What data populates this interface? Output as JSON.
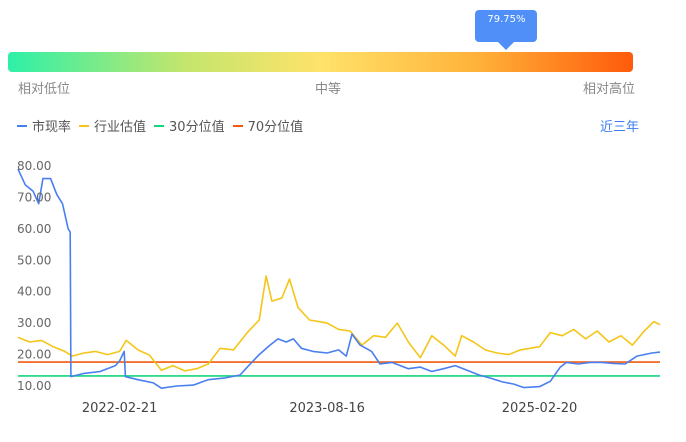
{
  "percentile_label": "79.75%",
  "percentile_value": 0.7975,
  "gradient": {
    "low_label": "相对低位",
    "mid_label": "中等",
    "high_label": "相对高位"
  },
  "legend": [
    {
      "label": "市现率",
      "color": "#4a7ff0"
    },
    {
      "label": "行业估值",
      "color": "#f5c518"
    },
    {
      "label": "30分位值",
      "color": "#13d67c"
    },
    {
      "label": "70分位值",
      "color": "#f2590f"
    }
  ],
  "range_link": "近三年",
  "chart_data": {
    "type": "line",
    "x_start": "2021-06-01",
    "x_end": "2025-12-31",
    "x_ticks": [
      "2022-02-21",
      "2023-08-16",
      "2025-02-20"
    ],
    "y_ticks": [
      "80.00",
      "70.00",
      "60.00",
      "50.00",
      "40.00",
      "30.00",
      "20.00",
      "10.00"
    ],
    "ylim": [
      10,
      80
    ],
    "grid": false,
    "series": [
      {
        "name": "市现率",
        "color": "#4a7ff0",
        "points": [
          [
            "2021-06-01",
            79
          ],
          [
            "2021-06-20",
            74
          ],
          [
            "2021-07-10",
            72
          ],
          [
            "2021-07-25",
            68
          ],
          [
            "2021-08-05",
            76
          ],
          [
            "2021-08-25",
            76
          ],
          [
            "2021-09-10",
            71
          ],
          [
            "2021-09-25",
            68
          ],
          [
            "2021-10-10",
            60
          ],
          [
            "2021-10-15",
            59
          ],
          [
            "2021-10-17",
            13
          ],
          [
            "2021-11-20",
            14
          ],
          [
            "2022-01-01",
            14.6
          ],
          [
            "2022-02-10",
            16.5
          ],
          [
            "2022-02-21",
            18
          ],
          [
            "2022-03-05",
            21
          ],
          [
            "2022-03-08",
            13
          ],
          [
            "2022-04-10",
            12
          ],
          [
            "2022-05-20",
            11
          ],
          [
            "2022-06-10",
            9.3
          ],
          [
            "2022-07-20",
            10
          ],
          [
            "2022-09-01",
            10.3
          ],
          [
            "2022-10-10",
            12
          ],
          [
            "2022-11-20",
            12.5
          ],
          [
            "2023-01-01",
            13.5
          ],
          [
            "2023-01-20",
            16
          ],
          [
            "2023-02-20",
            20
          ],
          [
            "2023-03-20",
            23
          ],
          [
            "2023-04-10",
            25
          ],
          [
            "2023-05-01",
            24
          ],
          [
            "2023-05-20",
            25
          ],
          [
            "2023-06-10",
            22
          ],
          [
            "2023-07-10",
            21
          ],
          [
            "2023-08-16",
            20.5
          ],
          [
            "2023-09-15",
            21.5
          ],
          [
            "2023-10-05",
            19.5
          ],
          [
            "2023-10-20",
            26.5
          ],
          [
            "2023-11-10",
            23
          ],
          [
            "2023-12-10",
            21
          ],
          [
            "2024-01-01",
            17
          ],
          [
            "2024-02-01",
            17.5
          ],
          [
            "2024-03-15",
            15.5
          ],
          [
            "2024-04-15",
            16
          ],
          [
            "2024-05-15",
            14.6
          ],
          [
            "2024-06-15",
            15.5
          ],
          [
            "2024-07-15",
            16.5
          ],
          [
            "2024-08-15",
            15
          ],
          [
            "2024-09-15",
            13.5
          ],
          [
            "2024-10-15",
            12.5
          ],
          [
            "2024-11-15",
            11.3
          ],
          [
            "2024-12-15",
            10.6
          ],
          [
            "2025-01-10",
            9.5
          ],
          [
            "2025-02-20",
            9.8
          ],
          [
            "2025-03-20",
            11.5
          ],
          [
            "2025-04-15",
            16
          ],
          [
            "2025-05-01",
            17.5
          ],
          [
            "2025-06-01",
            17
          ],
          [
            "2025-07-01",
            17.5
          ],
          [
            "2025-08-01",
            17.5
          ],
          [
            "2025-09-01",
            17.2
          ],
          [
            "2025-10-01",
            17
          ],
          [
            "2025-11-01",
            19.5
          ],
          [
            "2025-12-10",
            20.5
          ],
          [
            "2025-12-31",
            20.8
          ]
        ]
      },
      {
        "name": "行业估值",
        "color": "#f5c518",
        "points": [
          [
            "2021-06-01",
            25.5
          ],
          [
            "2021-07-01",
            24
          ],
          [
            "2021-08-01",
            24.5
          ],
          [
            "2021-09-01",
            22.5
          ],
          [
            "2021-10-01",
            21
          ],
          [
            "2021-10-20",
            19.5
          ],
          [
            "2021-11-20",
            20.5
          ],
          [
            "2021-12-20",
            21
          ],
          [
            "2022-01-20",
            20
          ],
          [
            "2022-02-21",
            21
          ],
          [
            "2022-03-10",
            24.5
          ],
          [
            "2022-04-10",
            21.5
          ],
          [
            "2022-05-10",
            19.8
          ],
          [
            "2022-06-10",
            15
          ],
          [
            "2022-07-10",
            16.5
          ],
          [
            "2022-08-10",
            14.8
          ],
          [
            "2022-09-10",
            15.5
          ],
          [
            "2022-10-10",
            17
          ],
          [
            "2022-11-10",
            22
          ],
          [
            "2022-12-15",
            21.5
          ],
          [
            "2023-01-20",
            27
          ],
          [
            "2023-02-20",
            31
          ],
          [
            "2023-03-10",
            45
          ],
          [
            "2023-03-25",
            37
          ],
          [
            "2023-04-20",
            38
          ],
          [
            "2023-05-10",
            44
          ],
          [
            "2023-06-01",
            35
          ],
          [
            "2023-07-01",
            31
          ],
          [
            "2023-08-16",
            30
          ],
          [
            "2023-09-15",
            28
          ],
          [
            "2023-10-15",
            27.5
          ],
          [
            "2023-11-15",
            23
          ],
          [
            "2023-12-15",
            26
          ],
          [
            "2024-01-15",
            25.5
          ],
          [
            "2024-02-15",
            30
          ],
          [
            "2024-03-15",
            24
          ],
          [
            "2024-04-15",
            19
          ],
          [
            "2024-05-15",
            26
          ],
          [
            "2024-06-15",
            23
          ],
          [
            "2024-07-15",
            19.5
          ],
          [
            "2024-08-01",
            26
          ],
          [
            "2024-09-01",
            24
          ],
          [
            "2024-10-01",
            21.5
          ],
          [
            "2024-11-01",
            20.5
          ],
          [
            "2024-12-01",
            20
          ],
          [
            "2025-01-01",
            21.5
          ],
          [
            "2025-02-20",
            22.5
          ],
          [
            "2025-03-20",
            27
          ],
          [
            "2025-04-20",
            26
          ],
          [
            "2025-05-20",
            28
          ],
          [
            "2025-06-20",
            25
          ],
          [
            "2025-07-20",
            27.5
          ],
          [
            "2025-08-20",
            24
          ],
          [
            "2025-09-20",
            26
          ],
          [
            "2025-10-20",
            23
          ],
          [
            "2025-11-20",
            27.5
          ],
          [
            "2025-12-15",
            30.5
          ],
          [
            "2025-12-31",
            29.5
          ]
        ]
      },
      {
        "name": "30分位值",
        "color": "#13d67c",
        "points": [
          [
            "2021-06-01",
            13.2
          ],
          [
            "2025-12-31",
            13.2
          ]
        ]
      },
      {
        "name": "70分位值",
        "color": "#f2590f",
        "points": [
          [
            "2021-06-01",
            17.6
          ],
          [
            "2025-12-31",
            17.6
          ]
        ]
      }
    ]
  }
}
